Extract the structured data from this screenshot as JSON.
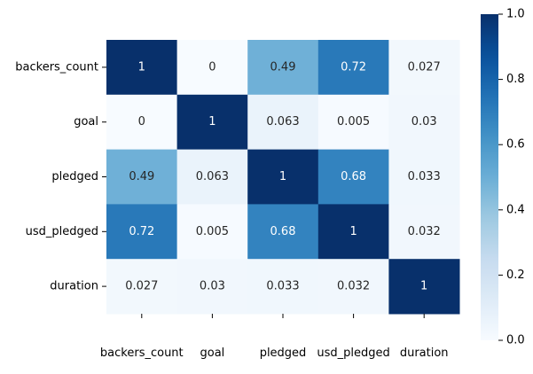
{
  "chart_data": {
    "type": "heatmap",
    "title": "",
    "xlabel": "",
    "ylabel": "",
    "x_categories": [
      "backers_count",
      "goal",
      "pledged",
      "usd_pledged",
      "duration"
    ],
    "y_categories": [
      "backers_count",
      "goal",
      "pledged",
      "usd_pledged",
      "duration"
    ],
    "values": [
      [
        1,
        0,
        0.49,
        0.72,
        0.027
      ],
      [
        0,
        1,
        0.063,
        0.005,
        0.03
      ],
      [
        0.49,
        0.063,
        1,
        0.68,
        0.033
      ],
      [
        0.72,
        0.005,
        0.68,
        1,
        0.032
      ],
      [
        0.027,
        0.03,
        0.033,
        0.032,
        1
      ]
    ],
    "cell_labels": [
      [
        "1",
        "0",
        "0.49",
        "0.72",
        "0.027"
      ],
      [
        "0",
        "1",
        "0.063",
        "0.005",
        "0.03"
      ],
      [
        "0.49",
        "0.063",
        "1",
        "0.68",
        "0.033"
      ],
      [
        "0.72",
        "0.005",
        "0.68",
        "1",
        "0.032"
      ],
      [
        "0.027",
        "0.03",
        "0.033",
        "0.032",
        "1"
      ]
    ],
    "colormap": "Blues",
    "vmin": 0,
    "vmax": 1,
    "colorbar": {
      "ticks": [
        0,
        0.2,
        0.4,
        0.6,
        0.8,
        1
      ],
      "tick_labels": [
        "0.0",
        "0.2",
        "0.4",
        "0.6",
        "0.8",
        "1.0"
      ]
    },
    "grid": false
  }
}
